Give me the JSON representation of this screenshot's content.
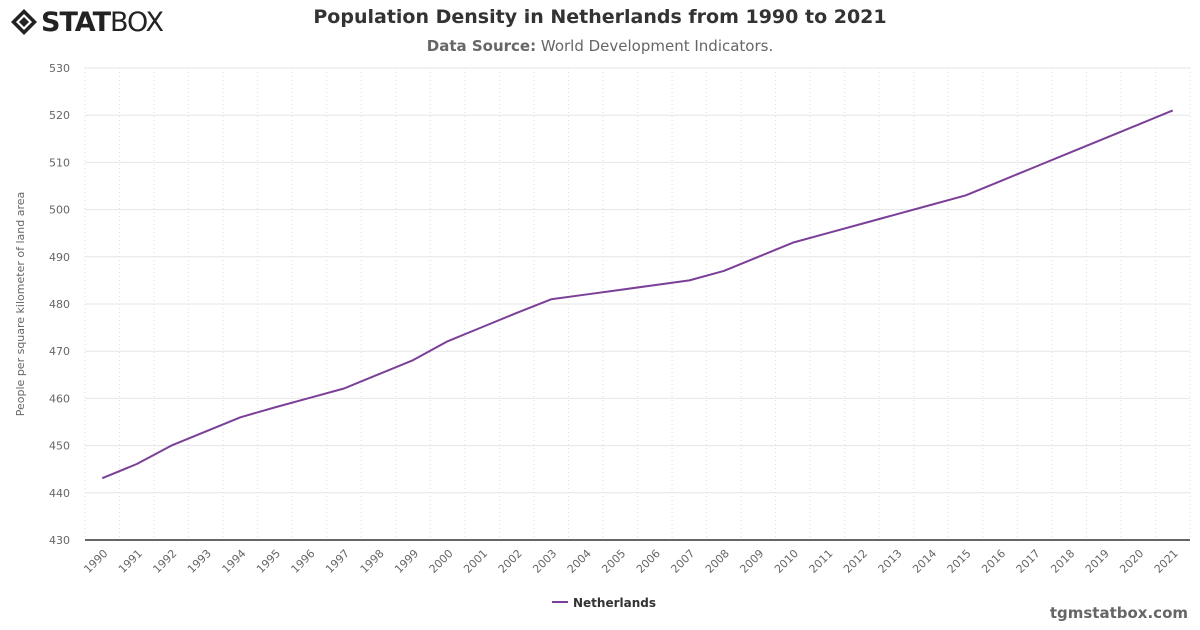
{
  "logo": {
    "bold": "STAT",
    "light": "BOX"
  },
  "title": "Population Density in Netherlands from 1990 to 2021",
  "subtitle": {
    "label": "Data Source:",
    "value": " World Development Indicators."
  },
  "credit": "tgmstatbox.com",
  "chart_data": {
    "type": "line",
    "title": "Population Density in Netherlands from 1990 to 2021",
    "ylabel": "People per square kilometer of land area",
    "xlabel": "",
    "ylim": [
      430,
      530
    ],
    "yticks": [
      430,
      440,
      450,
      460,
      470,
      480,
      490,
      500,
      510,
      520,
      530
    ],
    "grid": true,
    "legend": "bottom-center",
    "categories": [
      "1990",
      "1991",
      "1992",
      "1993",
      "1994",
      "1995",
      "1996",
      "1997",
      "1998",
      "1999",
      "2000",
      "2001",
      "2002",
      "2003",
      "2004",
      "2005",
      "2006",
      "2007",
      "2008",
      "2009",
      "2010",
      "2011",
      "2012",
      "2013",
      "2014",
      "2015",
      "2016",
      "2017",
      "2018",
      "2019",
      "2020",
      "2021"
    ],
    "series": [
      {
        "name": "Netherlands",
        "color": "#7b3f98",
        "values": [
          443.1,
          446.1,
          450.0,
          453.0,
          456.0,
          458.1,
          460.1,
          462.1,
          465.1,
          468.1,
          472.1,
          475.1,
          478.1,
          481.0,
          482.0,
          483.0,
          484.0,
          485.0,
          487.0,
          490.0,
          493.0,
          495.0,
          497.0,
          499.0,
          501.0,
          503.0,
          506.0,
          509.0,
          512.0,
          515.0,
          518.0,
          521.0
        ]
      }
    ]
  }
}
